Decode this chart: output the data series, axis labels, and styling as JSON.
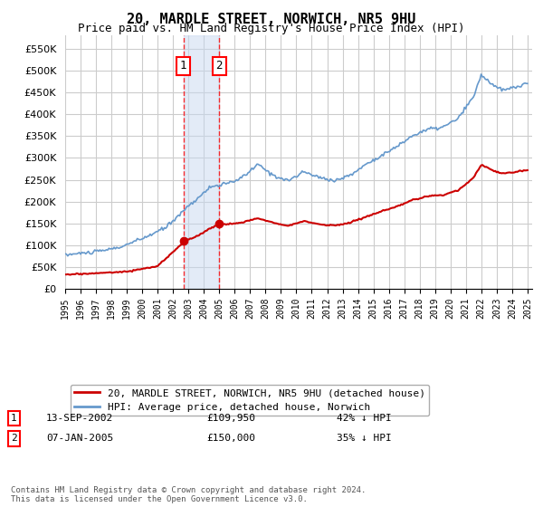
{
  "title": "20, MARDLE STREET, NORWICH, NR5 9HU",
  "subtitle": "Price paid vs. HM Land Registry's House Price Index (HPI)",
  "hpi_label": "HPI: Average price, detached house, Norwich",
  "property_label": "20, MARDLE STREET, NORWICH, NR5 9HU (detached house)",
  "hpi_color": "#6699cc",
  "property_color": "#cc0000",
  "sale1_date": "13-SEP-2002",
  "sale1_price": 109950,
  "sale1_hpi": "42% ↓ HPI",
  "sale1_label": "1",
  "sale2_date": "07-JAN-2005",
  "sale2_price": 150000,
  "sale2_hpi": "35% ↓ HPI",
  "sale2_label": "2",
  "footnote1": "Contains HM Land Registry data © Crown copyright and database right 2024.",
  "footnote2": "This data is licensed under the Open Government Licence v3.0.",
  "ylim_min": 0,
  "ylim_max": 580000,
  "background_color": "#ffffff",
  "grid_color": "#cccccc",
  "shade_color": "#c8d8f0"
}
